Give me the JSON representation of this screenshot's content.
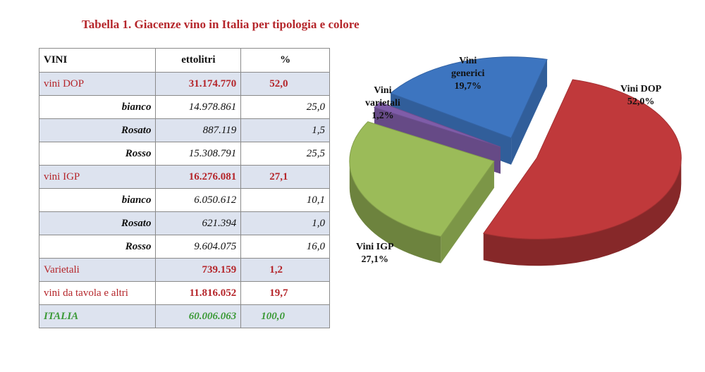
{
  "title": "Tabella 1. Giacenze vino in Italia per tipologia e colore",
  "table": {
    "headers": [
      "VINI",
      "ettolitri",
      "%"
    ],
    "rows": [
      {
        "label": "vini DOP",
        "ettolitri": "31.174.770",
        "perc": "52,0"
      },
      {
        "label": "bianco",
        "ettolitri": "14.978.861",
        "perc": "25,0"
      },
      {
        "label": "Rosato",
        "ettolitri": "887.119",
        "perc": "1,5"
      },
      {
        "label": "Rosso",
        "ettolitri": "15.308.791",
        "perc": "25,5"
      },
      {
        "label": "vini IGP",
        "ettolitri": "16.276.081",
        "perc": "27,1"
      },
      {
        "label": "bianco",
        "ettolitri": "6.050.612",
        "perc": "10,1"
      },
      {
        "label": "Rosato",
        "ettolitri": "621.394",
        "perc": "1,0"
      },
      {
        "label": "Rosso",
        "ettolitri": "9.604.075",
        "perc": "16,0"
      },
      {
        "label": "Varietali",
        "ettolitri": "739.159",
        "perc": "1,2"
      },
      {
        "label": "vini da tavola e altri",
        "ettolitri": "11.816.052",
        "perc": "19,7"
      },
      {
        "label": "ITALIA",
        "ettolitri": "60.006.063",
        "perc": "100,0"
      }
    ]
  },
  "pie": {
    "slices": [
      {
        "name_line1": "Vini DOP",
        "name_line2": "",
        "value": 52.0,
        "label": "52,0%",
        "color": "#c0393b"
      },
      {
        "name_line1": "Vini IGP",
        "name_line2": "",
        "value": 27.1,
        "label": "27,1%",
        "color": "#9bbb59"
      },
      {
        "name_line1": "Vini",
        "name_line2": "varietali",
        "value": 1.2,
        "label": "1,2%",
        "color": "#7f5ca8"
      },
      {
        "name_line1": "Vini",
        "name_line2": "generici",
        "value": 19.7,
        "label": "19,7%",
        "color": "#3d75c0"
      }
    ]
  }
}
